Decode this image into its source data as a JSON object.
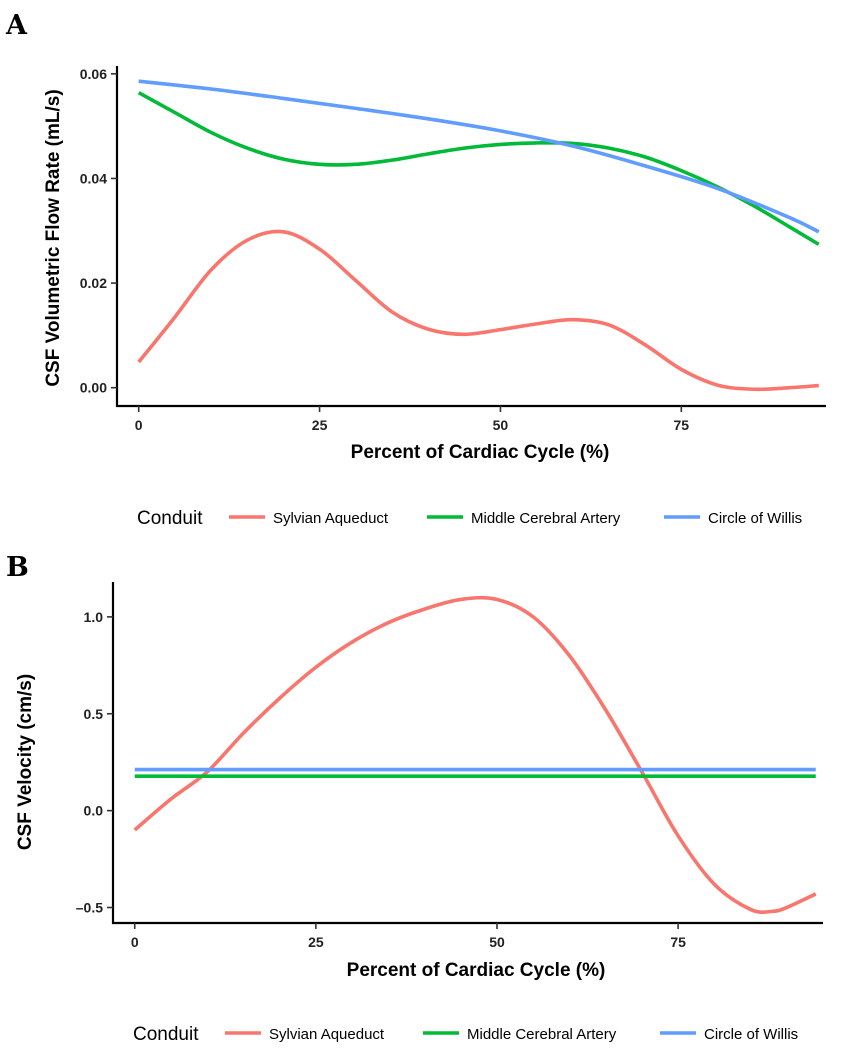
{
  "chart_data": [
    {
      "panel": "A",
      "type": "line",
      "xlabel": "Percent of Cardiac Cycle (%)",
      "ylabel": "CSF Volumetric Flow Rate (mL/s)",
      "xlim": [
        -3,
        95
      ],
      "ylim": [
        -0.0035,
        0.0615
      ],
      "xticks": [
        0,
        25,
        50,
        75
      ],
      "xtick_labels": [
        "0",
        "25",
        "50",
        "75"
      ],
      "yticks": [
        0,
        0.02,
        0.04,
        0.06
      ],
      "ytick_labels": [
        "0.00",
        "0.02",
        "0.04",
        "0.06"
      ],
      "series": [
        {
          "name": "Sylvian Aqueduct",
          "color": "#F8766D",
          "x": [
            0,
            5,
            10,
            15,
            20,
            25,
            30,
            35,
            40,
            45,
            50,
            55,
            60,
            65,
            70,
            75,
            80,
            85,
            90,
            94
          ],
          "y": [
            0.0049,
            0.0135,
            0.0225,
            0.0282,
            0.0298,
            0.0265,
            0.0205,
            0.0145,
            0.0112,
            0.0102,
            0.0111,
            0.0122,
            0.013,
            0.012,
            0.0082,
            0.0035,
            0.0005,
            -0.0003,
            0.0,
            0.0004
          ]
        },
        {
          "name": "Middle Cerebral Artery",
          "color": "#00BA38",
          "x": [
            0,
            5,
            10,
            15,
            20,
            25,
            30,
            35,
            40,
            45,
            50,
            55,
            60,
            65,
            70,
            75,
            80,
            85,
            90,
            94
          ],
          "y": [
            0.0564,
            0.0526,
            0.0488,
            0.0458,
            0.0437,
            0.0427,
            0.0427,
            0.0435,
            0.0447,
            0.0458,
            0.0465,
            0.0468,
            0.0467,
            0.0458,
            0.0441,
            0.0415,
            0.0384,
            0.0348,
            0.0307,
            0.0274
          ]
        },
        {
          "name": "Circle of Willis",
          "color": "#619CFF",
          "x": [
            0,
            10,
            20,
            30,
            40,
            50,
            60,
            70,
            80,
            90,
            94
          ],
          "y": [
            0.0586,
            0.0571,
            0.0553,
            0.0534,
            0.0514,
            0.0491,
            0.0462,
            0.0424,
            0.0381,
            0.0325,
            0.0298
          ]
        }
      ]
    },
    {
      "panel": "B",
      "type": "line",
      "xlabel": "Percent of Cardiac Cycle (%)",
      "ylabel": "CSF Velocity (cm/s)",
      "xlim": [
        -3,
        95
      ],
      "ylim": [
        -0.58,
        1.18
      ],
      "xticks": [
        0,
        25,
        50,
        75
      ],
      "xtick_labels": [
        "0",
        "25",
        "50",
        "75"
      ],
      "yticks": [
        -0.5,
        0,
        0.5,
        1.0
      ],
      "ytick_labels": [
        "–0.5",
        "0.0",
        "0.5",
        "1.0"
      ],
      "series": [
        {
          "name": "Sylvian Aqueduct",
          "color": "#F8766D",
          "x": [
            0,
            5,
            10,
            15,
            20,
            25,
            30,
            35,
            40,
            45,
            50,
            55,
            60,
            65,
            70,
            75,
            80,
            85,
            88,
            90,
            94
          ],
          "y": [
            -0.1,
            0.06,
            0.2,
            0.4,
            0.58,
            0.74,
            0.87,
            0.97,
            1.04,
            1.09,
            1.09,
            1.0,
            0.8,
            0.52,
            0.2,
            -0.13,
            -0.38,
            -0.51,
            -0.52,
            -0.5,
            -0.43
          ]
        },
        {
          "name": "Middle Cerebral Artery",
          "color": "#00BA38",
          "x": [
            0,
            94
          ],
          "y": [
            0.178,
            0.178
          ]
        },
        {
          "name": "Circle of Willis",
          "color": "#619CFF",
          "x": [
            0,
            94
          ],
          "y": [
            0.212,
            0.212
          ]
        }
      ]
    }
  ],
  "legend": {
    "title": "Conduit",
    "items": [
      {
        "label": "Sylvian Aqueduct",
        "color": "#F8766D"
      },
      {
        "label": "Middle Cerebral Artery",
        "color": "#00BA38"
      },
      {
        "label": "Circle of Willis",
        "color": "#619CFF"
      }
    ]
  }
}
